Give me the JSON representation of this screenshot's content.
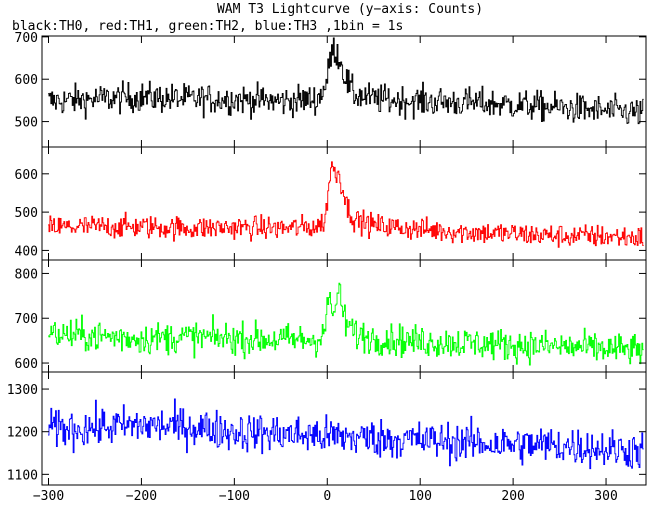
{
  "title": "WAM T3 Lightcurve (y−axis: Counts)",
  "subtitle": "black:TH0, red:TH1, green:TH2, blue:TH3 ,1bin = 1s",
  "chart_data": {
    "type": "line",
    "title": "WAM T3 Lightcurve (y−axis: Counts)",
    "subtitle": "black:TH0, red:TH1, green:TH2, blue:TH3 ,1bin = 1s",
    "xlabel": "",
    "ylabel": "",
    "xlim": [
      -307,
      343
    ],
    "x_ticks": [
      -300,
      -200,
      -100,
      0,
      100,
      200,
      300
    ],
    "bin_seconds": 1,
    "panels": [
      {
        "name": "TH0",
        "color": "#000000",
        "ylim": [
          440,
          702
        ],
        "y_ticks": [
          500,
          600,
          700
        ],
        "baseline": [
          [
            -300,
            548
          ],
          [
            -250,
            553
          ],
          [
            -200,
            558
          ],
          [
            -150,
            553
          ],
          [
            -100,
            553
          ],
          [
            -50,
            548
          ],
          [
            -10,
            553
          ],
          [
            0,
            595
          ],
          [
            3,
            650
          ],
          [
            7,
            670
          ],
          [
            10,
            665
          ],
          [
            15,
            640
          ],
          [
            20,
            600
          ],
          [
            28,
            565
          ],
          [
            50,
            553
          ],
          [
            100,
            548
          ],
          [
            150,
            545
          ],
          [
            200,
            540
          ],
          [
            250,
            533
          ],
          [
            300,
            525
          ],
          [
            343,
            520
          ]
        ],
        "noise_amplitude": 35
      },
      {
        "name": "TH1",
        "color": "#ff0000",
        "ylim": [
          375,
          670
        ],
        "y_ticks": [
          400,
          500,
          600
        ],
        "baseline": [
          [
            -300,
            460
          ],
          [
            -250,
            462
          ],
          [
            -200,
            462
          ],
          [
            -150,
            458
          ],
          [
            -100,
            460
          ],
          [
            -50,
            458
          ],
          [
            -10,
            462
          ],
          [
            -2,
            480
          ],
          [
            2,
            580
          ],
          [
            5,
            625
          ],
          [
            8,
            600
          ],
          [
            12,
            605
          ],
          [
            17,
            560
          ],
          [
            22,
            510
          ],
          [
            30,
            480
          ],
          [
            50,
            465
          ],
          [
            100,
            455
          ],
          [
            150,
            448
          ],
          [
            200,
            443
          ],
          [
            250,
            438
          ],
          [
            300,
            437
          ],
          [
            343,
            433
          ]
        ],
        "noise_amplitude": 30
      },
      {
        "name": "TH2",
        "color": "#00ff00",
        "ylim": [
          580,
          830
        ],
        "y_ticks": [
          600,
          700,
          800
        ],
        "baseline": [
          [
            -300,
            665
          ],
          [
            -250,
            660
          ],
          [
            -200,
            655
          ],
          [
            -150,
            658
          ],
          [
            -100,
            655
          ],
          [
            -50,
            652
          ],
          [
            -10,
            652
          ],
          [
            -2,
            680
          ],
          [
            2,
            750
          ],
          [
            5,
            720
          ],
          [
            8,
            700
          ],
          [
            11,
            770
          ],
          [
            14,
            740
          ],
          [
            20,
            690
          ],
          [
            30,
            665
          ],
          [
            50,
            655
          ],
          [
            100,
            648
          ],
          [
            150,
            645
          ],
          [
            200,
            640
          ],
          [
            250,
            637
          ],
          [
            300,
            632
          ],
          [
            343,
            628
          ]
        ],
        "noise_amplitude": 35
      },
      {
        "name": "TH3",
        "color": "#0000ff",
        "ylim": [
          1075,
          1340
        ],
        "y_ticks": [
          1100,
          1200,
          1300
        ],
        "baseline": [
          [
            -300,
            1205
          ],
          [
            -250,
            1210
          ],
          [
            -200,
            1215
          ],
          [
            -150,
            1212
          ],
          [
            -100,
            1200
          ],
          [
            -50,
            1195
          ],
          [
            0,
            1190
          ],
          [
            50,
            1185
          ],
          [
            100,
            1180
          ],
          [
            150,
            1175
          ],
          [
            200,
            1170
          ],
          [
            250,
            1168
          ],
          [
            300,
            1160
          ],
          [
            343,
            1155
          ]
        ],
        "noise_amplitude": 45
      }
    ],
    "grid": false,
    "legend": "subtitle"
  }
}
